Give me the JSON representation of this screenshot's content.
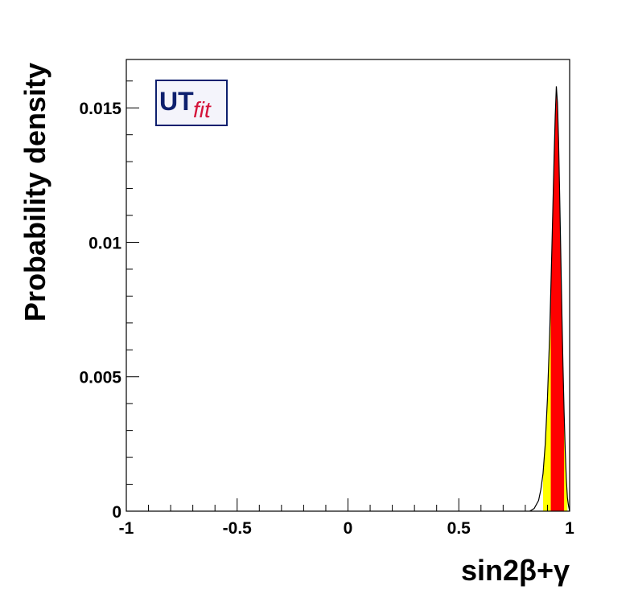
{
  "logo": {
    "main": "UT",
    "sub": "fit"
  },
  "chart_data": {
    "type": "area",
    "title": "",
    "xlabel": "sin2β+γ",
    "ylabel": "Probability density",
    "xlim": [
      -1,
      1
    ],
    "ylim": [
      0,
      0.0168
    ],
    "grid": false,
    "x_ticks": [
      -1,
      -0.5,
      0,
      0.5,
      1
    ],
    "x_tick_labels": [
      "-1",
      "-0.5",
      "0",
      "0.5",
      "1"
    ],
    "y_ticks": [
      0,
      0.005,
      0.01,
      0.015
    ],
    "y_tick_labels": [
      "0",
      "0.005",
      "0.01",
      "0.015"
    ],
    "series": [
      {
        "x": [
          0.82,
          0.84,
          0.86,
          0.87,
          0.88,
          0.89,
          0.9,
          0.91,
          0.92,
          0.93,
          0.935,
          0.94,
          0.945,
          0.95,
          0.955,
          0.96,
          0.965,
          0.97,
          0.975,
          0.98,
          0.985,
          0.99,
          0.995,
          1.0
        ],
        "values": [
          0.0,
          0.0001,
          0.0004,
          0.0008,
          0.0014,
          0.0025,
          0.0042,
          0.0066,
          0.0098,
          0.0132,
          0.0147,
          0.0158,
          0.0152,
          0.0138,
          0.0118,
          0.0096,
          0.0074,
          0.0054,
          0.0037,
          0.0023,
          0.0012,
          0.0005,
          0.0002,
          0.0
        ]
      }
    ],
    "regions": [
      {
        "color": "#ffff00",
        "x_range": [
          0.88,
          0.99
        ]
      },
      {
        "color": "#ff0000",
        "x_range": [
          0.915,
          0.975
        ]
      }
    ]
  }
}
